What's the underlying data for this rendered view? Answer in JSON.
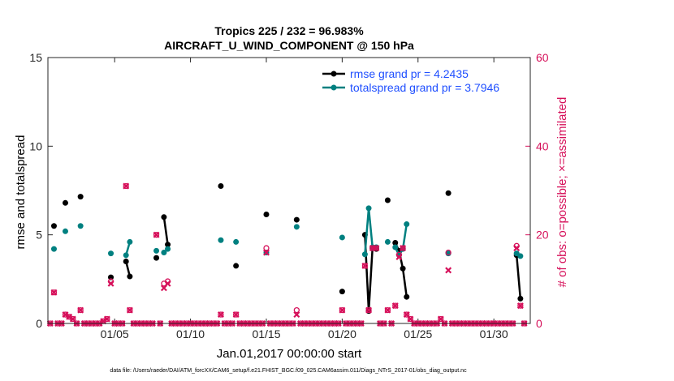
{
  "chart_data": {
    "type": "line",
    "title_line1": "Tropics 225 / 232 = 96.983%",
    "title_line2": "AIRCRAFT_U_WIND_COMPONENT @ 150 hPa",
    "xlabel": "Jan.01,2017 00:00:00 start",
    "ylabel_left": "rmse and totalspread",
    "ylabel_right": "# of obs: o=possible; ×=assimilated",
    "footer": "data file: /Users/raeder/DAI/ATM_forcXX/CAM6_setup/f.e21.FHIST_BGC.f09_025.CAM6assim.011/Diags_NTrS_2017-01/obs_diag_output.nc",
    "xlim": [
      0.6,
      32.4
    ],
    "ylim_left": [
      0,
      15
    ],
    "ylim_right": [
      0,
      60
    ],
    "x_ticks": [
      5,
      10,
      15,
      20,
      25,
      30
    ],
    "x_tick_labels": [
      "01/05",
      "01/10",
      "01/15",
      "01/20",
      "01/25",
      "01/30"
    ],
    "y_left_ticks": [
      "0",
      "5",
      "10",
      "15"
    ],
    "y_right_ticks": [
      "0",
      "20",
      "40",
      "60"
    ],
    "colors": {
      "rmse": "#000000",
      "spread": "#008080",
      "obs": "#d6105a",
      "legend_text": "#1f4fff"
    },
    "legend": [
      "rmse grand pr = 4.2435",
      "totalspread grand pr = 3.7946"
    ],
    "series": [
      {
        "name": "rmse",
        "segments": [
          [
            [
              1.0,
              5.5
            ]
          ],
          [
            [
              1.75,
              6.8
            ]
          ],
          [
            [
              2.75,
              7.15
            ]
          ],
          [
            [
              4.75,
              2.6
            ]
          ],
          [
            [
              5.75,
              3.5
            ],
            [
              6.0,
              2.65
            ]
          ],
          [
            [
              7.75,
              3.7
            ]
          ],
          [
            [
              8.25,
              6.0
            ],
            [
              8.5,
              4.45
            ]
          ],
          [
            [
              12.0,
              7.75
            ]
          ],
          [
            [
              13.0,
              3.25
            ]
          ],
          [
            [
              15.0,
              6.15
            ]
          ],
          [
            [
              17.0,
              5.85
            ]
          ],
          [
            [
              20.0,
              1.8
            ]
          ],
          [
            [
              21.5,
              5.0
            ],
            [
              21.75,
              0.7
            ],
            [
              22.0,
              4.25
            ],
            [
              22.25,
              4.2
            ]
          ],
          [
            [
              23.0,
              6.95
            ]
          ],
          [
            [
              23.5,
              4.55
            ],
            [
              23.75,
              4.1
            ],
            [
              24.0,
              3.1
            ],
            [
              24.25,
              1.5
            ]
          ],
          [
            [
              27.0,
              7.35
            ]
          ],
          [
            [
              31.5,
              3.85
            ],
            [
              31.75,
              1.4
            ]
          ]
        ]
      },
      {
        "name": "totalspread",
        "segments": [
          [
            [
              1.0,
              4.2
            ]
          ],
          [
            [
              1.75,
              5.2
            ]
          ],
          [
            [
              2.75,
              5.5
            ]
          ],
          [
            [
              4.75,
              3.95
            ]
          ],
          [
            [
              5.75,
              3.85
            ],
            [
              6.0,
              4.6
            ]
          ],
          [
            [
              7.75,
              4.1
            ]
          ],
          [
            [
              8.25,
              4.0
            ],
            [
              8.5,
              4.2
            ]
          ],
          [
            [
              12.0,
              4.7
            ]
          ],
          [
            [
              13.0,
              4.6
            ]
          ],
          [
            [
              15.0,
              4.0
            ]
          ],
          [
            [
              17.0,
              5.45
            ]
          ],
          [
            [
              20.0,
              4.85
            ]
          ],
          [
            [
              21.5,
              3.9
            ],
            [
              21.75,
              6.5
            ],
            [
              22.0,
              4.3
            ],
            [
              22.25,
              4.3
            ]
          ],
          [
            [
              23.0,
              4.6
            ]
          ],
          [
            [
              23.5,
              4.3
            ],
            [
              23.75,
              3.85
            ],
            [
              24.0,
              4.2
            ],
            [
              24.25,
              5.6
            ]
          ],
          [
            [
              27.0,
              3.95
            ]
          ],
          [
            [
              31.5,
              3.95
            ],
            [
              31.75,
              3.8
            ]
          ]
        ]
      }
    ],
    "obs_possible": [
      [
        0.75,
        0
      ],
      [
        1.0,
        7
      ],
      [
        1.25,
        0
      ],
      [
        1.5,
        0
      ],
      [
        1.75,
        2
      ],
      [
        2.0,
        1.5
      ],
      [
        2.25,
        1
      ],
      [
        2.5,
        0
      ],
      [
        2.75,
        3
      ],
      [
        3.0,
        0
      ],
      [
        3.25,
        0
      ],
      [
        3.5,
        0
      ],
      [
        3.75,
        0
      ],
      [
        4.0,
        0
      ],
      [
        4.25,
        0.5
      ],
      [
        4.5,
        1
      ],
      [
        4.75,
        9.5
      ],
      [
        5.0,
        0
      ],
      [
        5.25,
        0
      ],
      [
        5.5,
        0
      ],
      [
        5.75,
        31
      ],
      [
        6.0,
        3
      ],
      [
        6.25,
        0
      ],
      [
        6.5,
        0
      ],
      [
        6.75,
        0
      ],
      [
        7.0,
        0
      ],
      [
        7.25,
        0
      ],
      [
        7.5,
        0
      ],
      [
        7.75,
        20
      ],
      [
        8.0,
        0
      ],
      [
        8.25,
        9
      ],
      [
        8.5,
        9.5
      ],
      [
        8.75,
        0
      ],
      [
        9.0,
        0
      ],
      [
        9.25,
        0
      ],
      [
        9.5,
        0
      ],
      [
        9.75,
        0
      ],
      [
        10.0,
        0
      ],
      [
        10.25,
        0
      ],
      [
        10.5,
        0
      ],
      [
        10.75,
        0
      ],
      [
        11.0,
        0
      ],
      [
        11.25,
        0
      ],
      [
        11.5,
        0
      ],
      [
        11.75,
        0
      ],
      [
        12.0,
        2
      ],
      [
        12.25,
        0
      ],
      [
        12.5,
        0
      ],
      [
        12.75,
        0
      ],
      [
        13.0,
        2
      ],
      [
        13.25,
        0
      ],
      [
        13.5,
        0
      ],
      [
        13.75,
        0
      ],
      [
        14.0,
        0
      ],
      [
        14.25,
        0
      ],
      [
        14.5,
        0
      ],
      [
        14.75,
        0
      ],
      [
        15.0,
        17
      ],
      [
        15.25,
        0
      ],
      [
        15.5,
        0
      ],
      [
        15.75,
        0
      ],
      [
        16.0,
        0
      ],
      [
        16.25,
        0
      ],
      [
        16.5,
        0
      ],
      [
        16.75,
        0
      ],
      [
        17.0,
        3
      ],
      [
        17.25,
        0
      ],
      [
        17.5,
        0
      ],
      [
        17.75,
        0
      ],
      [
        18.0,
        0
      ],
      [
        18.25,
        0
      ],
      [
        18.5,
        0
      ],
      [
        18.75,
        0
      ],
      [
        19.0,
        0
      ],
      [
        19.25,
        0
      ],
      [
        19.5,
        0
      ],
      [
        19.75,
        0
      ],
      [
        20.0,
        3
      ],
      [
        20.25,
        0
      ],
      [
        20.5,
        0
      ],
      [
        20.75,
        0
      ],
      [
        21.0,
        0
      ],
      [
        21.25,
        0
      ],
      [
        21.5,
        13
      ],
      [
        21.75,
        3
      ],
      [
        22.0,
        17
      ],
      [
        22.25,
        17
      ],
      [
        22.5,
        0
      ],
      [
        22.75,
        0
      ],
      [
        23.0,
        3
      ],
      [
        23.25,
        0
      ],
      [
        23.5,
        4
      ],
      [
        23.75,
        15.5
      ],
      [
        24.0,
        17
      ],
      [
        24.25,
        2
      ],
      [
        24.5,
        1
      ],
      [
        24.75,
        0
      ],
      [
        25.0,
        0
      ],
      [
        25.25,
        0
      ],
      [
        25.5,
        0
      ],
      [
        25.75,
        0
      ],
      [
        26.0,
        0
      ],
      [
        26.25,
        0
      ],
      [
        26.5,
        1
      ],
      [
        26.75,
        0
      ],
      [
        27.0,
        16
      ],
      [
        27.25,
        0
      ],
      [
        27.5,
        0
      ],
      [
        27.75,
        0
      ],
      [
        28.0,
        0
      ],
      [
        28.25,
        0
      ],
      [
        28.5,
        0
      ],
      [
        28.75,
        0
      ],
      [
        29.0,
        0
      ],
      [
        29.25,
        0
      ],
      [
        29.5,
        0
      ],
      [
        29.75,
        0
      ],
      [
        30.0,
        0
      ],
      [
        30.25,
        0
      ],
      [
        30.5,
        0
      ],
      [
        30.75,
        0
      ],
      [
        31.0,
        0
      ],
      [
        31.25,
        0
      ],
      [
        31.5,
        17.5
      ],
      [
        31.75,
        4
      ],
      [
        32.0,
        0
      ]
    ],
    "obs_assimilated": [
      [
        0.75,
        0
      ],
      [
        1.0,
        7
      ],
      [
        1.25,
        0
      ],
      [
        1.5,
        0
      ],
      [
        1.75,
        2
      ],
      [
        2.0,
        1.5
      ],
      [
        2.25,
        1
      ],
      [
        2.5,
        0
      ],
      [
        2.75,
        3
      ],
      [
        3.0,
        0
      ],
      [
        3.25,
        0
      ],
      [
        3.5,
        0
      ],
      [
        3.75,
        0
      ],
      [
        4.0,
        0
      ],
      [
        4.25,
        0.5
      ],
      [
        4.5,
        1
      ],
      [
        4.75,
        9
      ],
      [
        5.0,
        0
      ],
      [
        5.25,
        0
      ],
      [
        5.5,
        0
      ],
      [
        5.75,
        31
      ],
      [
        6.0,
        3
      ],
      [
        6.25,
        0
      ],
      [
        6.5,
        0
      ],
      [
        6.75,
        0
      ],
      [
        7.0,
        0
      ],
      [
        7.25,
        0
      ],
      [
        7.5,
        0
      ],
      [
        7.75,
        20
      ],
      [
        8.0,
        0
      ],
      [
        8.25,
        8
      ],
      [
        8.5,
        9
      ],
      [
        8.75,
        0
      ],
      [
        9.0,
        0
      ],
      [
        9.25,
        0
      ],
      [
        9.5,
        0
      ],
      [
        9.75,
        0
      ],
      [
        10.0,
        0
      ],
      [
        10.25,
        0
      ],
      [
        10.5,
        0
      ],
      [
        10.75,
        0
      ],
      [
        11.0,
        0
      ],
      [
        11.25,
        0
      ],
      [
        11.5,
        0
      ],
      [
        11.75,
        0
      ],
      [
        12.0,
        2
      ],
      [
        12.25,
        0
      ],
      [
        12.5,
        0
      ],
      [
        12.75,
        0
      ],
      [
        13.0,
        2
      ],
      [
        13.25,
        0
      ],
      [
        13.5,
        0
      ],
      [
        13.75,
        0
      ],
      [
        14.0,
        0
      ],
      [
        14.25,
        0
      ],
      [
        14.5,
        0
      ],
      [
        14.75,
        0
      ],
      [
        15.0,
        16
      ],
      [
        15.25,
        0
      ],
      [
        15.5,
        0
      ],
      [
        15.75,
        0
      ],
      [
        16.0,
        0
      ],
      [
        16.25,
        0
      ],
      [
        16.5,
        0
      ],
      [
        16.75,
        0
      ],
      [
        17.0,
        2
      ],
      [
        17.25,
        0
      ],
      [
        17.5,
        0
      ],
      [
        17.75,
        0
      ],
      [
        18.0,
        0
      ],
      [
        18.25,
        0
      ],
      [
        18.5,
        0
      ],
      [
        18.75,
        0
      ],
      [
        19.0,
        0
      ],
      [
        19.25,
        0
      ],
      [
        19.5,
        0
      ],
      [
        19.75,
        0
      ],
      [
        20.0,
        3
      ],
      [
        20.25,
        0
      ],
      [
        20.5,
        0
      ],
      [
        20.75,
        0
      ],
      [
        21.0,
        0
      ],
      [
        21.25,
        0
      ],
      [
        21.5,
        13
      ],
      [
        21.75,
        3
      ],
      [
        22.0,
        17
      ],
      [
        22.25,
        17
      ],
      [
        22.5,
        0
      ],
      [
        22.75,
        0
      ],
      [
        23.0,
        3
      ],
      [
        23.25,
        0
      ],
      [
        23.5,
        4
      ],
      [
        23.75,
        15
      ],
      [
        24.0,
        17
      ],
      [
        24.25,
        2
      ],
      [
        24.5,
        1
      ],
      [
        24.75,
        0
      ],
      [
        25.0,
        0
      ],
      [
        25.25,
        0
      ],
      [
        25.5,
        0
      ],
      [
        25.75,
        0
      ],
      [
        26.0,
        0
      ],
      [
        26.25,
        0
      ],
      [
        26.5,
        1
      ],
      [
        26.75,
        0
      ],
      [
        27.0,
        12
      ],
      [
        27.25,
        0
      ],
      [
        27.5,
        0
      ],
      [
        27.75,
        0
      ],
      [
        28.0,
        0
      ],
      [
        28.25,
        0
      ],
      [
        28.5,
        0
      ],
      [
        28.75,
        0
      ],
      [
        29.0,
        0
      ],
      [
        29.25,
        0
      ],
      [
        29.5,
        0
      ],
      [
        29.75,
        0
      ],
      [
        30.0,
        0
      ],
      [
        30.25,
        0
      ],
      [
        30.5,
        0
      ],
      [
        30.75,
        0
      ],
      [
        31.0,
        0
      ],
      [
        31.25,
        0
      ],
      [
        31.5,
        17
      ],
      [
        31.75,
        4
      ],
      [
        32.0,
        0
      ]
    ]
  }
}
